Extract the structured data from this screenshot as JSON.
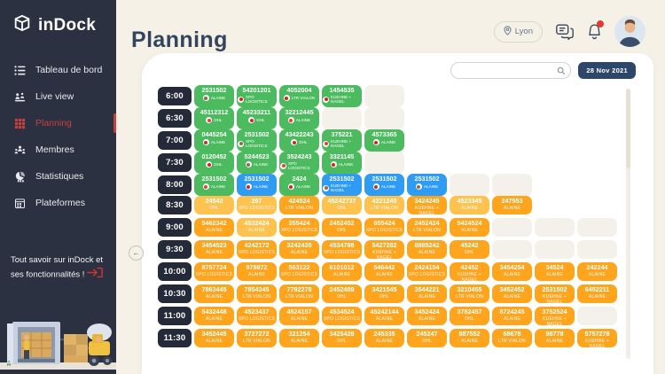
{
  "app": {
    "name": "inDock"
  },
  "sidebar": {
    "items": [
      {
        "label": "Tableau de bord"
      },
      {
        "label": "Live view"
      },
      {
        "label": "Planning"
      },
      {
        "label": "Membres"
      },
      {
        "label": "Statistiques"
      },
      {
        "label": "Plateformes"
      }
    ],
    "promo_text": "Tout savoir sur inDock et ses fonctionnalités !"
  },
  "header": {
    "title": "Planning",
    "location": "Lyon"
  },
  "toolbar": {
    "date": "28 Nov 2021",
    "search_placeholder": ""
  },
  "colors": {
    "accent_red": "#c8403d",
    "green": "#4cbb5f",
    "blue": "#2f9cf4",
    "orange": "#ffa41d",
    "orange_light": "#ffc24f",
    "sidebar_navy": "#2b3140",
    "time_pill_navy": "#242a38",
    "date_chip_navy": "#2e4668",
    "background_beige": "#f5f1e7"
  },
  "planning": {
    "rows": [
      {
        "time": "6:00",
        "kind": "tall",
        "empties": 1,
        "cards": [
          {
            "n": "2531502",
            "c": "ALAINE",
            "color": "green",
            "logo": "#8b6b4f"
          },
          {
            "n": "54201201",
            "c": "XPO LOGISTICS",
            "color": "green",
            "logo": "#d3222a"
          },
          {
            "n": "4052004",
            "c": "LTR VIALON",
            "color": "green",
            "logo": "#d3222a"
          },
          {
            "n": "1454535",
            "c": "KUEHNE + NAGEL",
            "color": "green",
            "logo": "#d3222a"
          }
        ]
      },
      {
        "time": "6:30",
        "kind": "tall",
        "empties": 2,
        "cards": [
          {
            "n": "45112312",
            "c": "DHL",
            "color": "green",
            "logo": "#e04338"
          },
          {
            "n": "45233211",
            "c": "DHL",
            "color": "green",
            "logo": "#d3222a"
          },
          {
            "n": "32212445",
            "c": "ALAINE",
            "color": "green",
            "logo": "#e04338"
          }
        ]
      },
      {
        "time": "7:00",
        "kind": "tall",
        "empties": 0,
        "cards": [
          {
            "n": "0445254",
            "c": "ALAINE",
            "color": "green",
            "logo": "#b03a2e"
          },
          {
            "n": "2531502",
            "c": "XPO LOGISTICS",
            "color": "green",
            "logo": "#8b6b4f"
          },
          {
            "n": "43422243",
            "c": "DHL",
            "color": "green",
            "logo": "#d3222a"
          },
          {
            "n": "375221",
            "c": "KUEHNE + NAGEL",
            "color": "green",
            "logo": "#e04338"
          },
          {
            "n": "4573365",
            "c": "ALAINE",
            "color": "green",
            "logo": "#d3222a"
          }
        ]
      },
      {
        "time": "7:30",
        "kind": "tall",
        "empties": 1,
        "cards": [
          {
            "n": "0120452",
            "c": "DHL",
            "color": "green",
            "logo": "#d3222a"
          },
          {
            "n": "5244523",
            "c": "ALAINE",
            "color": "green",
            "logo": "#8b6b4f"
          },
          {
            "n": "3524243",
            "c": "XPO LOGISTICS",
            "color": "green",
            "logo": "#e04338"
          },
          {
            "n": "3321145",
            "c": "ALAINE",
            "color": "green",
            "logo": "#d3222a"
          }
        ]
      },
      {
        "time": "8:00",
        "kind": "tall",
        "empties": 2,
        "cards": [
          {
            "n": "2531502",
            "c": "ALAINE",
            "color": "green",
            "logo": "#e04338"
          },
          {
            "n": "2531502",
            "c": "ALAINE",
            "color": "blue",
            "logo": "#d3222a"
          },
          {
            "n": "2424",
            "c": "ALAINE",
            "color": "green",
            "logo": "#d3222a"
          },
          {
            "n": "2531502",
            "c": "KUEHNE + NAGEL",
            "color": "blue",
            "logo": "#8b6b4f"
          },
          {
            "n": "2531502",
            "c": "ALAINE",
            "color": "blue",
            "logo": "#b03a2e"
          },
          {
            "n": "2531502",
            "c": "ALAINE",
            "color": "blue",
            "logo": "#8b6b4f"
          }
        ]
      },
      {
        "time": "8:30",
        "kind": "short",
        "empties": 0,
        "cards": [
          {
            "n": "24542",
            "c": "DHL",
            "color": "orange-light"
          },
          {
            "n": "267",
            "c": "XPO LOGISTICS",
            "color": "orange-light"
          },
          {
            "n": "424524",
            "c": "LTR VIALON",
            "color": "orange"
          },
          {
            "n": "45242737",
            "c": "DHL",
            "color": "orange-light"
          },
          {
            "n": "4221245",
            "c": "LTR VIALON",
            "color": "orange-light"
          },
          {
            "n": "3424245",
            "c": "KUEHNE + NAGEL",
            "color": "orange"
          },
          {
            "n": "4523345",
            "c": "ALAINE",
            "color": "orange-light"
          },
          {
            "n": "247553",
            "c": "ALAINE",
            "color": "orange"
          }
        ]
      },
      {
        "time": "9:00",
        "kind": "short",
        "empties": 3,
        "cards": [
          {
            "n": "5462342",
            "c": "ALAINE",
            "color": "orange"
          },
          {
            "n": "4532424",
            "c": "ALAINE",
            "color": "orange-light"
          },
          {
            "n": "355424",
            "c": "XPO LOGISTICS",
            "color": "orange"
          },
          {
            "n": "2452452",
            "c": "DHL",
            "color": "orange"
          },
          {
            "n": "655424",
            "c": "XPO LOGISTICS",
            "color": "orange"
          },
          {
            "n": "2452424",
            "c": "LTR VIALON",
            "color": "orange"
          },
          {
            "n": "5424524",
            "c": "ALAINE",
            "color": "orange"
          }
        ]
      },
      {
        "time": "9:30",
        "kind": "short",
        "empties": 3,
        "cards": [
          {
            "n": "3454523",
            "c": "ALAINE",
            "color": "orange"
          },
          {
            "n": "4242172",
            "c": "XPO LOGISTICS",
            "color": "orange"
          },
          {
            "n": "3242435",
            "c": "ALAINE",
            "color": "orange"
          },
          {
            "n": "4534788",
            "c": "XPO LOGISTICS",
            "color": "orange"
          },
          {
            "n": "5427282",
            "c": "KUEHNE + NAGEL",
            "color": "orange"
          },
          {
            "n": "8885242",
            "c": "ALAINE",
            "color": "orange"
          },
          {
            "n": "45242",
            "c": "DHL",
            "color": "orange"
          }
        ]
      },
      {
        "time": "10:00",
        "kind": "short",
        "empties": 0,
        "cards": [
          {
            "n": "8757724",
            "c": "XPO LOGISTICS",
            "color": "orange"
          },
          {
            "n": "978872",
            "c": "ALAINE",
            "color": "orange"
          },
          {
            "n": "563122",
            "c": "XPO LOGISTICS",
            "color": "orange"
          },
          {
            "n": "6101012",
            "c": "ALAINE",
            "color": "orange"
          },
          {
            "n": "546442",
            "c": "ALAINE",
            "color": "orange"
          },
          {
            "n": "2424154",
            "c": "XPO LOGISTICS",
            "color": "orange"
          },
          {
            "n": "42452",
            "c": "KUEHNE + NAGEL",
            "color": "orange"
          },
          {
            "n": "3454254",
            "c": "ALAINE",
            "color": "orange"
          },
          {
            "n": "34524",
            "c": "ALAINE",
            "color": "orange"
          },
          {
            "n": "242244",
            "c": "ALAINE",
            "color": "orange"
          }
        ]
      },
      {
        "time": "10:30",
        "kind": "short",
        "empties": 0,
        "cards": [
          {
            "n": "7863445",
            "c": "ALAINE",
            "color": "orange"
          },
          {
            "n": "7854345",
            "c": "LTR VIALON",
            "color": "orange"
          },
          {
            "n": "7782278",
            "c": "LTR VIALON",
            "color": "orange"
          },
          {
            "n": "2452488",
            "c": "DHL",
            "color": "orange"
          },
          {
            "n": "3421545",
            "c": "DHL",
            "color": "orange"
          },
          {
            "n": "3544221",
            "c": "ALAINE",
            "color": "orange"
          },
          {
            "n": "3210455",
            "c": "LTR VIALON",
            "color": "orange"
          },
          {
            "n": "3452452",
            "c": "ALAINE",
            "color": "orange"
          },
          {
            "n": "2531502",
            "c": "KUEHNE + NAGEL",
            "color": "orange"
          },
          {
            "n": "6452211",
            "c": "ALAINE",
            "color": "orange"
          }
        ]
      },
      {
        "time": "11:00",
        "kind": "short",
        "empties": 1,
        "cards": [
          {
            "n": "5432448",
            "c": "ALAINE",
            "color": "orange"
          },
          {
            "n": "4523437",
            "c": "XPO LOGISTICS",
            "color": "orange"
          },
          {
            "n": "4524157",
            "c": "ALAINE",
            "color": "orange"
          },
          {
            "n": "4534524",
            "c": "XPO LOGISTICS",
            "color": "orange"
          },
          {
            "n": "45242144",
            "c": "ALAINE",
            "color": "orange"
          },
          {
            "n": "3452424",
            "c": "ALAINE",
            "color": "orange"
          },
          {
            "n": "3782457",
            "c": "DHL",
            "color": "orange"
          },
          {
            "n": "8724245",
            "c": "ALAINE",
            "color": "orange"
          },
          {
            "n": "3752524",
            "c": "KUEHNE + NAGEL",
            "color": "orange"
          }
        ]
      },
      {
        "time": "11:30",
        "kind": "short",
        "empties": 0,
        "cards": [
          {
            "n": "3452445",
            "c": "ALAINE",
            "color": "orange"
          },
          {
            "n": "3727272",
            "c": "LTR VIALON",
            "color": "orange"
          },
          {
            "n": "321254",
            "c": "ALAINE",
            "color": "orange"
          },
          {
            "n": "3425428",
            "c": "DHL",
            "color": "orange"
          },
          {
            "n": "245335",
            "c": "ALAINE",
            "color": "orange"
          },
          {
            "n": "245247",
            "c": "DHL",
            "color": "orange"
          },
          {
            "n": "887552",
            "c": "ALAINE",
            "color": "orange"
          },
          {
            "n": "68678",
            "c": "LTR VIALON",
            "color": "orange"
          },
          {
            "n": "98778",
            "c": "ALAINE",
            "color": "orange"
          },
          {
            "n": "5757278",
            "c": "KUEHNE + NAGEL",
            "color": "orange"
          }
        ]
      }
    ]
  }
}
